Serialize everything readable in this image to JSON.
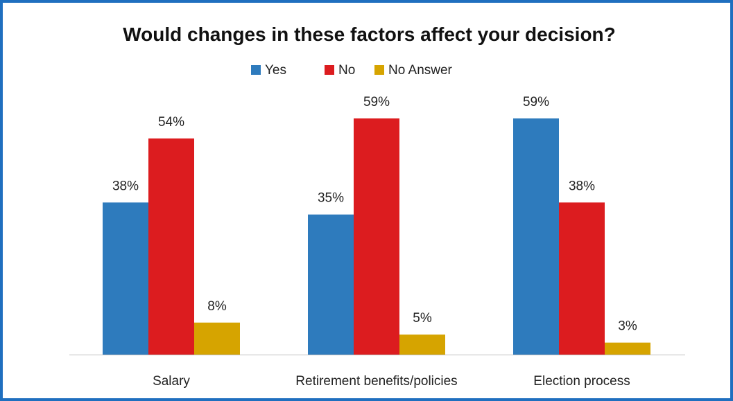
{
  "chart_data": {
    "type": "bar",
    "title": "Would changes in these factors affect your decision?",
    "categories": [
      "Salary",
      "Retirement benefits/policies",
      "Election process"
    ],
    "series": [
      {
        "name": "Yes",
        "color": "#2e7bbd",
        "values": [
          38,
          35,
          59
        ],
        "labels": [
          "38%",
          "35%",
          "59%"
        ]
      },
      {
        "name": "No",
        "color": "#dc1c1f",
        "values": [
          54,
          59,
          38
        ],
        "labels": [
          "54%",
          "59%",
          "38%"
        ]
      },
      {
        "name": "No Answer",
        "color": "#d6a400",
        "values": [
          8,
          5,
          3
        ],
        "labels": [
          "8%",
          "5%",
          "3%"
        ]
      }
    ],
    "ylim": [
      0,
      59
    ],
    "legend_position": "top",
    "grid": false
  }
}
